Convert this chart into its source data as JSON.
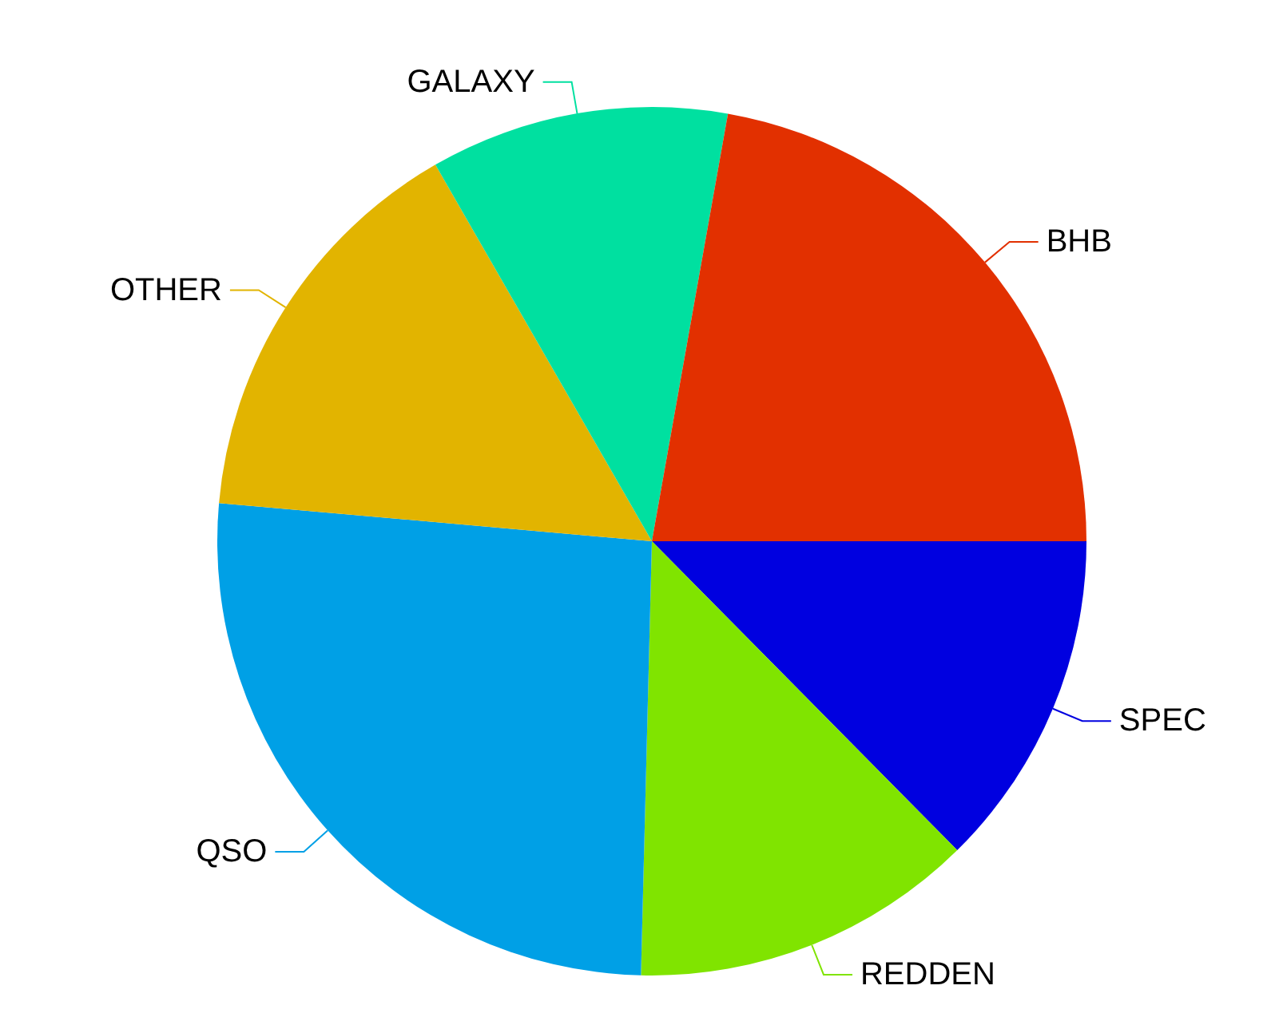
{
  "chart_data": {
    "type": "pie",
    "categories": [
      "SPEC",
      "REDDEN",
      "QSO",
      "OTHER",
      "GALAXY",
      "BHB"
    ],
    "values": [
      12.6,
      12.8,
      26,
      15.3,
      11.1,
      22.2
    ],
    "colors": [
      "#0000e0",
      "#80e400",
      "#00a0e6",
      "#e2b400",
      "#00e0a0",
      "#e23000"
    ]
  }
}
